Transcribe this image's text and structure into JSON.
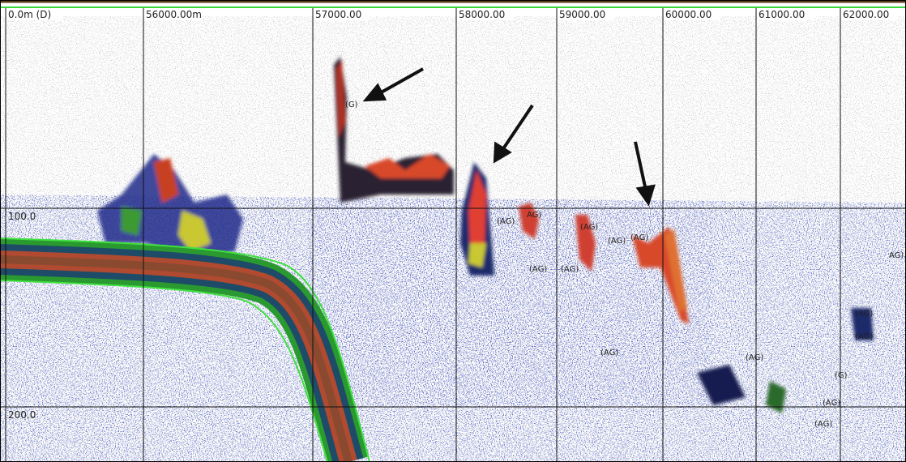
{
  "echogram": {
    "distance_labels": [
      "0.0m (D)",
      "56000.00m",
      "57000.00",
      "58000.00",
      "59000.00",
      "60000.00",
      "61000.00",
      "62000.00"
    ],
    "depth_labels": [
      "100.0",
      "200.0"
    ],
    "region_labels": [
      "(G)",
      "(AG)",
      "AG)",
      "(AG)",
      "(AG)",
      "(AG)",
      "(AG)",
      "(AG)",
      "AG)",
      "(AG)",
      "(AG)",
      "(AG)",
      "(AG)",
      "(G)",
      "(AG)",
      "(AG)"
    ]
  }
}
